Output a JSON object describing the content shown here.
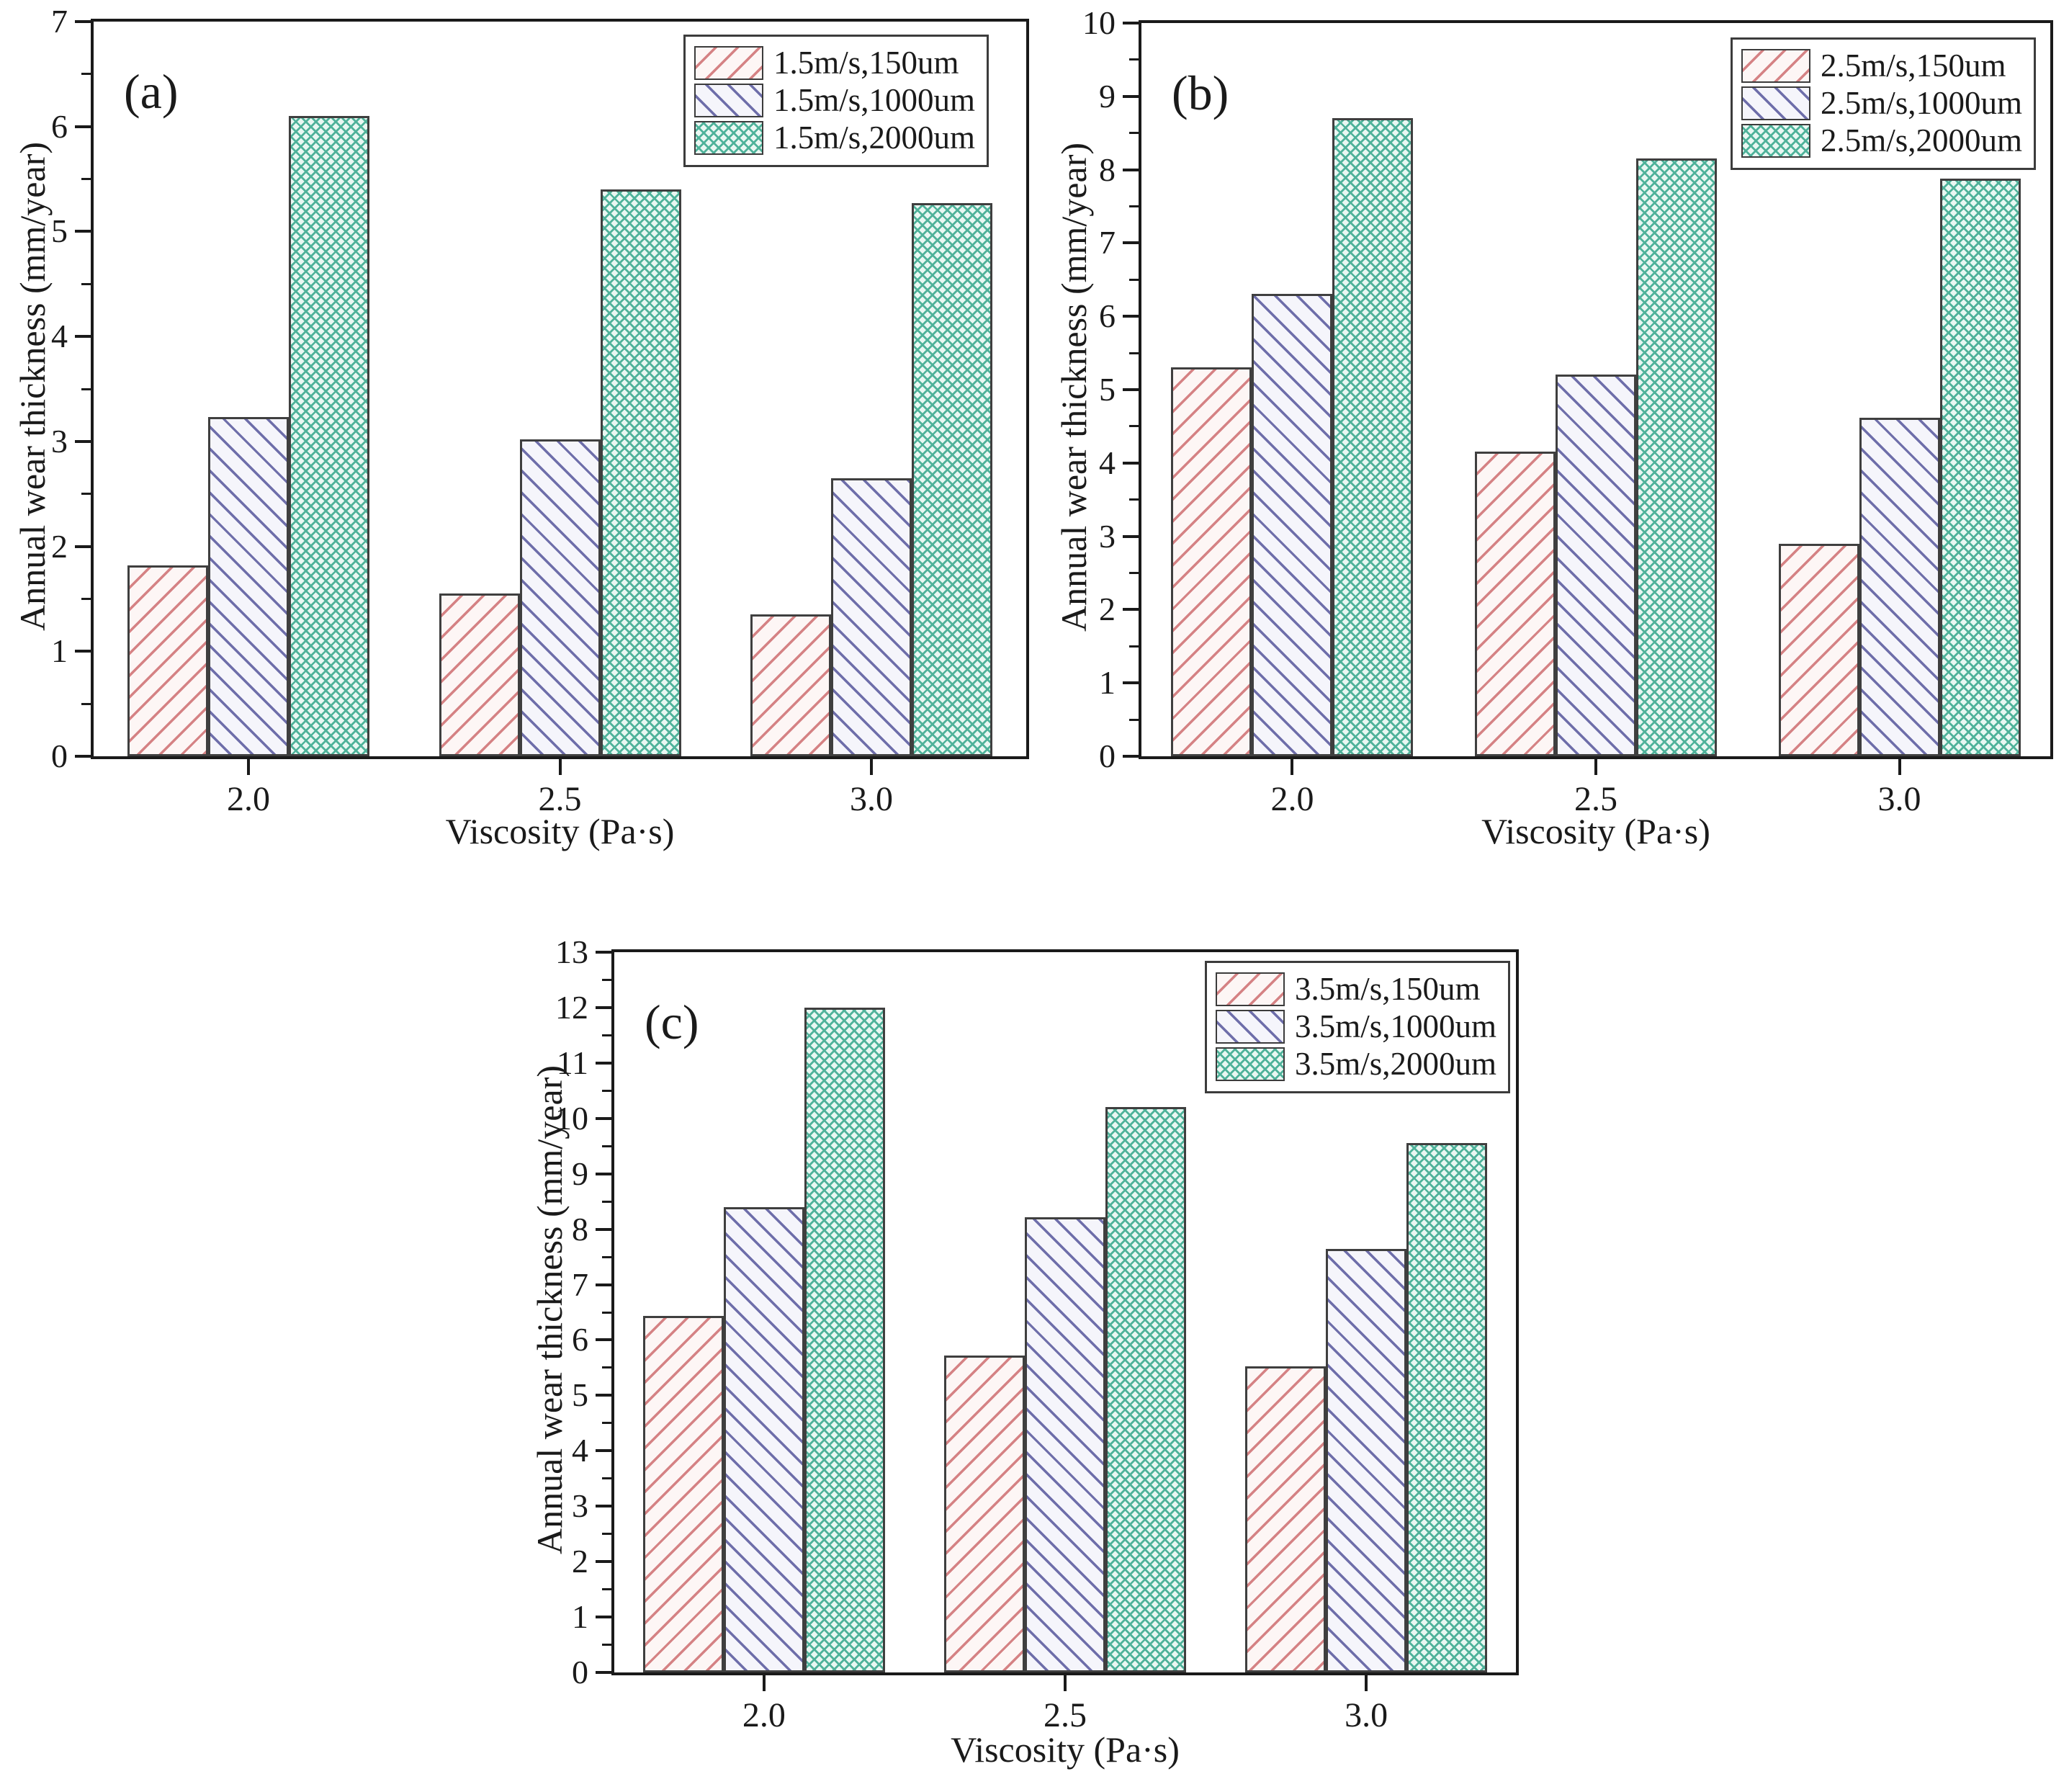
{
  "figure": {
    "background_color": "#ffffff",
    "axis_color": "#1a1a1a",
    "x_axis_title": "Viscosity (Pa·s)",
    "y_axis_title": "Annual wear thickness (mm/year)",
    "series_styles": [
      {
        "pattern": "diagonal-up-hatch",
        "line_color": "#d58284",
        "fill_color": "#fdf6f5"
      },
      {
        "pattern": "diagonal-down-hatch",
        "line_color": "#6e6eaa",
        "fill_color": "#f5f5fb"
      },
      {
        "pattern": "crosshatch",
        "line_color": "#4fb29a",
        "fill_color": "#e9f7f2"
      }
    ]
  },
  "chart_data": [
    {
      "type": "bar",
      "panel": "(a)",
      "title": "",
      "xlabel": "Viscosity (Pa·s)",
      "ylabel": "Annual wear thickness (mm/year)",
      "categories": [
        "2.0",
        "2.5",
        "3.0"
      ],
      "ylim": [
        0,
        7
      ],
      "yticks": [
        "0",
        "1",
        "2",
        "3",
        "4",
        "5",
        "6",
        "7"
      ],
      "yminor_step": 0.5,
      "grid": false,
      "legend_position": "top-right",
      "series": [
        {
          "name": "1.5m/s,150um",
          "values": [
            1.82,
            1.55,
            1.35
          ]
        },
        {
          "name": "1.5m/s,1000um",
          "values": [
            3.23,
            3.02,
            2.65
          ]
        },
        {
          "name": "1.5m/s,2000um",
          "values": [
            6.1,
            5.4,
            5.27
          ]
        }
      ]
    },
    {
      "type": "bar",
      "panel": "(b)",
      "title": "",
      "xlabel": "Viscosity (Pa·s)",
      "ylabel": "Annual wear thickness (mm/year)",
      "categories": [
        "2.0",
        "2.5",
        "3.0"
      ],
      "ylim": [
        0,
        10
      ],
      "yticks": [
        "0",
        "1",
        "2",
        "3",
        "4",
        "5",
        "6",
        "7",
        "8",
        "9",
        "10"
      ],
      "yminor_step": 0.5,
      "grid": false,
      "legend_position": "top-right",
      "series": [
        {
          "name": "2.5m/s,150um",
          "values": [
            5.3,
            4.16,
            2.9
          ]
        },
        {
          "name": "2.5m/s,1000um",
          "values": [
            6.31,
            5.21,
            4.62
          ]
        },
        {
          "name": "2.5m/s,2000um",
          "values": [
            8.7,
            8.15,
            7.88
          ]
        }
      ]
    },
    {
      "type": "bar",
      "panel": "(c)",
      "title": "",
      "xlabel": "Viscosity (Pa·s)",
      "ylabel": "Annual wear thickness (mm/year)",
      "categories": [
        "2.0",
        "2.5",
        "3.0"
      ],
      "ylim": [
        0,
        13
      ],
      "yticks": [
        "0",
        "1",
        "2",
        "3",
        "4",
        "5",
        "6",
        "7",
        "8",
        "9",
        "10",
        "11",
        "12",
        "13"
      ],
      "yminor_step": 0.5,
      "grid": false,
      "legend_position": "top-right",
      "series": [
        {
          "name": "3.5m/s,150um",
          "values": [
            6.43,
            5.72,
            5.52
          ]
        },
        {
          "name": "3.5m/s,1000um",
          "values": [
            8.4,
            8.22,
            7.65
          ]
        },
        {
          "name": "3.5m/s,2000um",
          "values": [
            12.0,
            10.2,
            9.55
          ]
        }
      ]
    }
  ]
}
